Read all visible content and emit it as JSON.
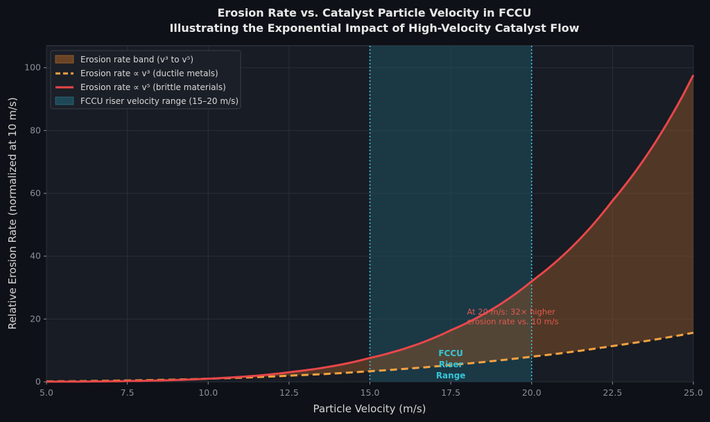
{
  "chart_data": {
    "type": "line",
    "title": "Erosion Rate vs. Catalyst Particle Velocity in FCCU",
    "subtitle": "Illustrating the Exponential Impact of High-Velocity Catalyst Flow",
    "xlabel": "Particle Velocity (m/s)",
    "ylabel": "Relative Erosion Rate (normalized at 10 m/s)",
    "xlim": [
      5,
      25
    ],
    "ylim": [
      0,
      107
    ],
    "xticks": [
      "5.0",
      "7.5",
      "10.0",
      "12.5",
      "15.0",
      "17.5",
      "20.0",
      "22.5",
      "25.0"
    ],
    "yticks": [
      "0",
      "20",
      "40",
      "60",
      "80",
      "100"
    ],
    "grid": true,
    "legend_position": "top-left",
    "x": [
      5,
      7.5,
      10,
      12.5,
      15,
      17.5,
      20,
      22.5,
      25
    ],
    "series": [
      {
        "name": "Erosion rate ∝ v³ (ductile metals)",
        "style": "dashed",
        "color": "#f5a242",
        "values": [
          0.125,
          0.42,
          1.0,
          1.95,
          3.38,
          5.36,
          8.0,
          11.39,
          15.63
        ]
      },
      {
        "name": "Erosion rate ∝ v⁵ (brittle materials)",
        "style": "solid",
        "color": "#e8474a",
        "values": [
          0.03,
          0.24,
          1.0,
          3.05,
          7.59,
          16.41,
          32.0,
          57.67,
          97.66
        ]
      }
    ],
    "band": {
      "name": "Erosion rate band (v³ to v⁵)",
      "color": "#8a5227"
    },
    "shaded_range": {
      "name": "FCCU riser velocity range (15–20 m/s)",
      "x_range": [
        15,
        20
      ],
      "color": "#1f5060"
    },
    "annotations": [
      {
        "text_line1": "At 20 m/s: 32× higher",
        "text_line2": "erosion rate vs. 10 m/s",
        "x": 18,
        "y": 24
      },
      {
        "lines": [
          "FCCU",
          "Riser",
          "Range"
        ],
        "x": 17.5,
        "y": 6
      }
    ]
  }
}
